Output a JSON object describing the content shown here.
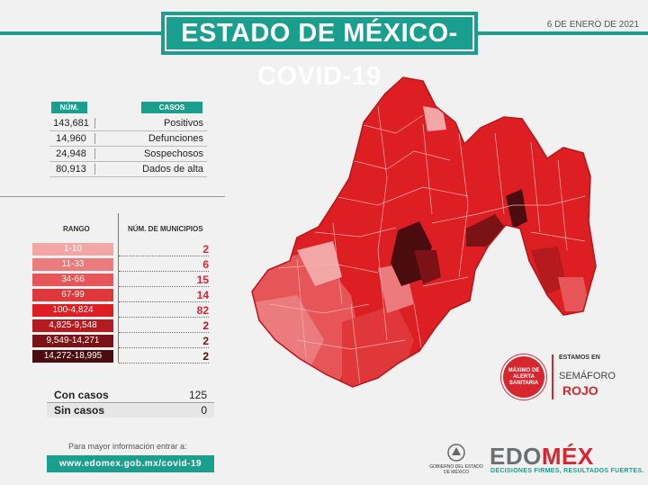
{
  "header": {
    "title": "ESTADO DE MÉXICO-COVID-19",
    "date": "6 DE ENERO DE 2021"
  },
  "cases_table": {
    "num_header": "NÚM.",
    "cases_header": "CASOS",
    "rows": [
      {
        "num": "143,681",
        "label": "Positivos"
      },
      {
        "num": "14,960",
        "label": "Defunciones"
      },
      {
        "num": "24,948",
        "label": "Sospechosos"
      },
      {
        "num": "80,913",
        "label": "Dados de alta"
      }
    ]
  },
  "range_table": {
    "range_header": "RANGO",
    "munis_header": "NÚM. DE MUNICIPIOS",
    "rows": [
      {
        "range": "1-10",
        "count": "2",
        "color": "#f3a6a6",
        "text_color": "#d8262f"
      },
      {
        "range": "11-33",
        "count": "6",
        "color": "#ec7b7d",
        "text_color": "#d8262f"
      },
      {
        "range": "34-66",
        "count": "15",
        "color": "#e65557",
        "text_color": "#d8262f"
      },
      {
        "range": "67-99",
        "count": "14",
        "color": "#e0383a",
        "text_color": "#d8262f"
      },
      {
        "range": "100-4,824",
        "count": "82",
        "color": "#dd1f23",
        "text_color": "#d8262f"
      },
      {
        "range": "4,825-9,548",
        "count": "2",
        "color": "#b51a1f",
        "text_color": "#b51a1f"
      },
      {
        "range": "9,549-14,271",
        "count": "2",
        "color": "#7a1216",
        "text_color": "#7a1216"
      },
      {
        "range": "14,272-18,995",
        "count": "2",
        "color": "#4a0c0e",
        "text_color": "#4a0c0e"
      }
    ]
  },
  "summary": {
    "with_cases_label": "Con casos",
    "with_cases_value": "125",
    "without_cases_label": "Sin casos",
    "without_cases_value": "0"
  },
  "info": {
    "text": "Para mayor información entrar a:",
    "url": "www.edomex.gob.mx/covid-19"
  },
  "semaforo": {
    "circle_text": "MÁXIMO DE ALERTA SANITARIA",
    "estamos": "ESTAMOS EN",
    "semaforo": "SEMÁFORO",
    "rojo": "ROJO"
  },
  "footer": {
    "gob_text": "GOBIERNO DEL ESTADO DE MÉXICO",
    "edomex_part1": "EDO",
    "edomex_part2": "MÉX",
    "tagline": "DECISIONES FIRMES, RESULTADOS FUERTES."
  },
  "colors": {
    "teal": "#1a9e8e",
    "map_base": "#dd1f23",
    "map_dark": "#4a0c0e",
    "map_light": "#ec7b7d"
  }
}
